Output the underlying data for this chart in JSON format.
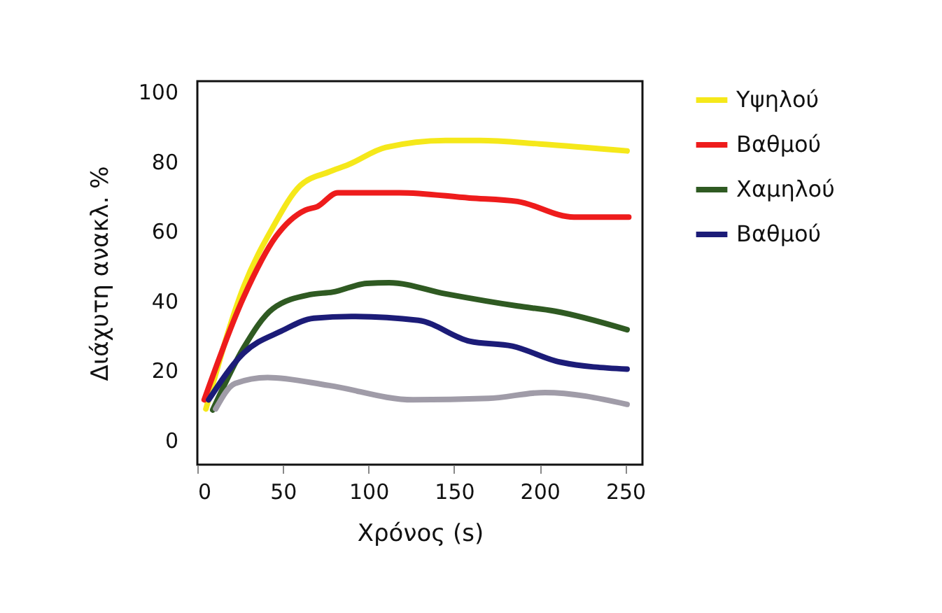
{
  "chart_data": {
    "type": "line",
    "xlabel": "Χρόνος (s)",
    "ylabel": "Διάχυτη ανακλ. %",
    "xlim": [
      0,
      260
    ],
    "ylim": [
      -7,
      103
    ],
    "xticks": [
      0,
      50,
      100,
      150,
      200,
      250
    ],
    "yticks": [
      0,
      20,
      40,
      60,
      80,
      100
    ],
    "grid": false,
    "legend": "right",
    "marker": "none",
    "line_style": "solid",
    "series": [
      {
        "name": "Υψηλού",
        "color": "#f5e81a",
        "x": [
          5,
          27,
          44,
          60,
          77,
          88,
          110,
          145,
          165,
          200,
          251
        ],
        "values": [
          9,
          44,
          61,
          73,
          77,
          79,
          84,
          86,
          86,
          85,
          83
        ]
      },
      {
        "name": "Βαθμού",
        "color": "#ee1c1c",
        "x": [
          4,
          27,
          46,
          63,
          70,
          82,
          118,
          159,
          187,
          220,
          252
        ],
        "values": [
          11.6,
          41,
          58.5,
          66,
          67,
          71,
          71,
          69.5,
          68.5,
          64,
          64
        ]
      },
      {
        "name": "Χαμηλού",
        "color": "#2f5a22",
        "x": [
          9,
          27,
          44,
          66,
          79,
          99,
          112,
          145,
          187,
          209,
          251
        ],
        "values": [
          8.7,
          26.5,
          37.7,
          41.8,
          42.5,
          45,
          45.2,
          42,
          38.5,
          37,
          31.7
        ]
      },
      {
        "name": "Βαθμού",
        "color": "#1c1c78",
        "x": [
          6.6,
          27,
          49,
          68,
          90,
          129,
          159,
          184,
          212,
          251
        ],
        "values": [
          11.6,
          25,
          31.3,
          35,
          35.5,
          34.4,
          28.4,
          27,
          22.4,
          20.4
        ]
      },
      {
        "color": "#a09ca8",
        "x": [
          10.7,
          22,
          41,
          77,
          126,
          170,
          203,
          251
        ],
        "values": [
          9,
          16.3,
          18,
          15.7,
          11.6,
          12,
          13.7,
          10.3
        ]
      }
    ]
  }
}
